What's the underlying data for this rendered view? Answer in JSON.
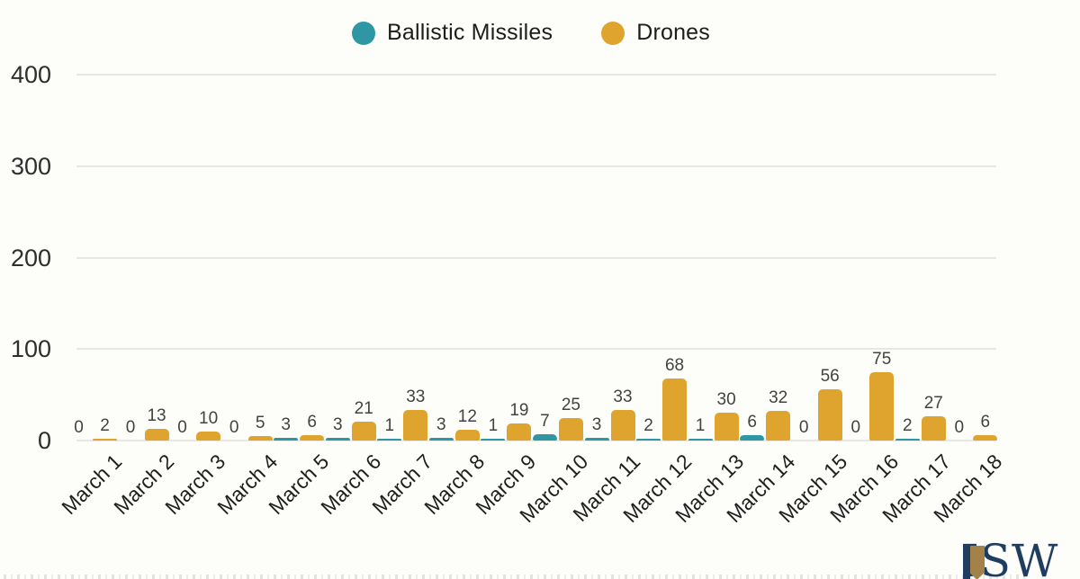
{
  "legend": {
    "items": [
      {
        "label": "Ballistic Missiles",
        "color": "#2E97A3"
      },
      {
        "label": "Drones",
        "color": "#DEA42E"
      }
    ]
  },
  "chart_data": {
    "type": "bar",
    "title": "",
    "xlabel": "",
    "ylabel": "",
    "categories": [
      "March 1",
      "March 2",
      "March 3",
      "March 4",
      "March 5",
      "March 6",
      "March 7",
      "March 8",
      "March 9",
      "March 10",
      "March 11",
      "March 12",
      "March 13",
      "March 14",
      "March 15",
      "March 16",
      "March 17",
      "March 18"
    ],
    "series": [
      {
        "name": "Ballistic Missiles",
        "color": "#2E97A3",
        "values": [
          0,
          0,
          0,
          0,
          3,
          3,
          1,
          3,
          1,
          7,
          3,
          2,
          1,
          6,
          0,
          0,
          2,
          0
        ]
      },
      {
        "name": "Drones",
        "color": "#DEA42E",
        "values": [
          2,
          13,
          10,
          5,
          6,
          21,
          33,
          12,
          19,
          25,
          33,
          68,
          30,
          32,
          56,
          75,
          27,
          6
        ]
      }
    ],
    "ylim": [
      0,
      400
    ],
    "yticks": [
      0,
      100,
      200,
      300,
      400
    ],
    "grid": true,
    "bar_labels": true,
    "legend_position": "top-center"
  },
  "logo": {
    "text": "ISW",
    "navy": "#1E3D5F",
    "gold": "#A3824A"
  }
}
